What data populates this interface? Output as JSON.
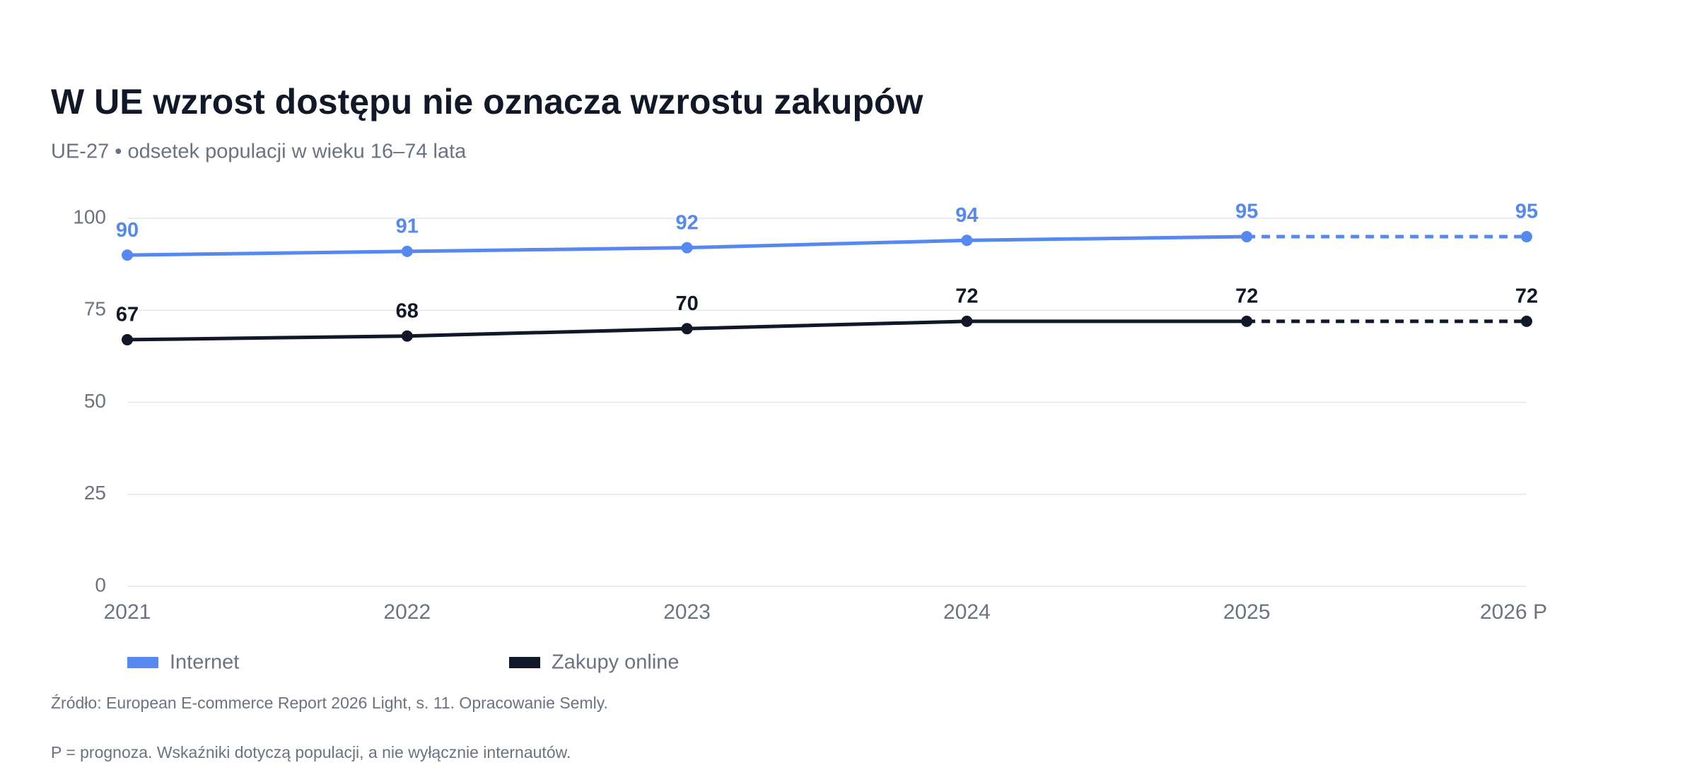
{
  "chart_data": {
    "type": "line",
    "title": "W UE wzrost dostępu nie oznacza wzrostu zakupów",
    "subtitle": "UE-27 • odsetek populacji w wieku 16–74 lata",
    "categories": [
      "2021",
      "2022",
      "2023",
      "2024",
      "2025",
      "2026 P"
    ],
    "forecast": [
      false,
      false,
      false,
      false,
      false,
      true
    ],
    "series": [
      {
        "name": "Internet",
        "color": "#5589f0",
        "values": [
          90,
          91,
          92,
          94,
          95,
          95
        ]
      },
      {
        "name": "Zakupy online",
        "color": "#111827",
        "values": [
          67,
          68,
          70,
          72,
          72,
          72
        ]
      }
    ],
    "ylim": [
      0,
      100
    ],
    "yticks": [
      0,
      25,
      50,
      75,
      100
    ],
    "grid": true,
    "source": "Źródło: European E-commerce Report 2026 Light, s. 11. Opracowanie Semly.",
    "note": "P = prognoza. Wskaźniki dotyczą populacji, a nie wyłącznie internautów."
  }
}
